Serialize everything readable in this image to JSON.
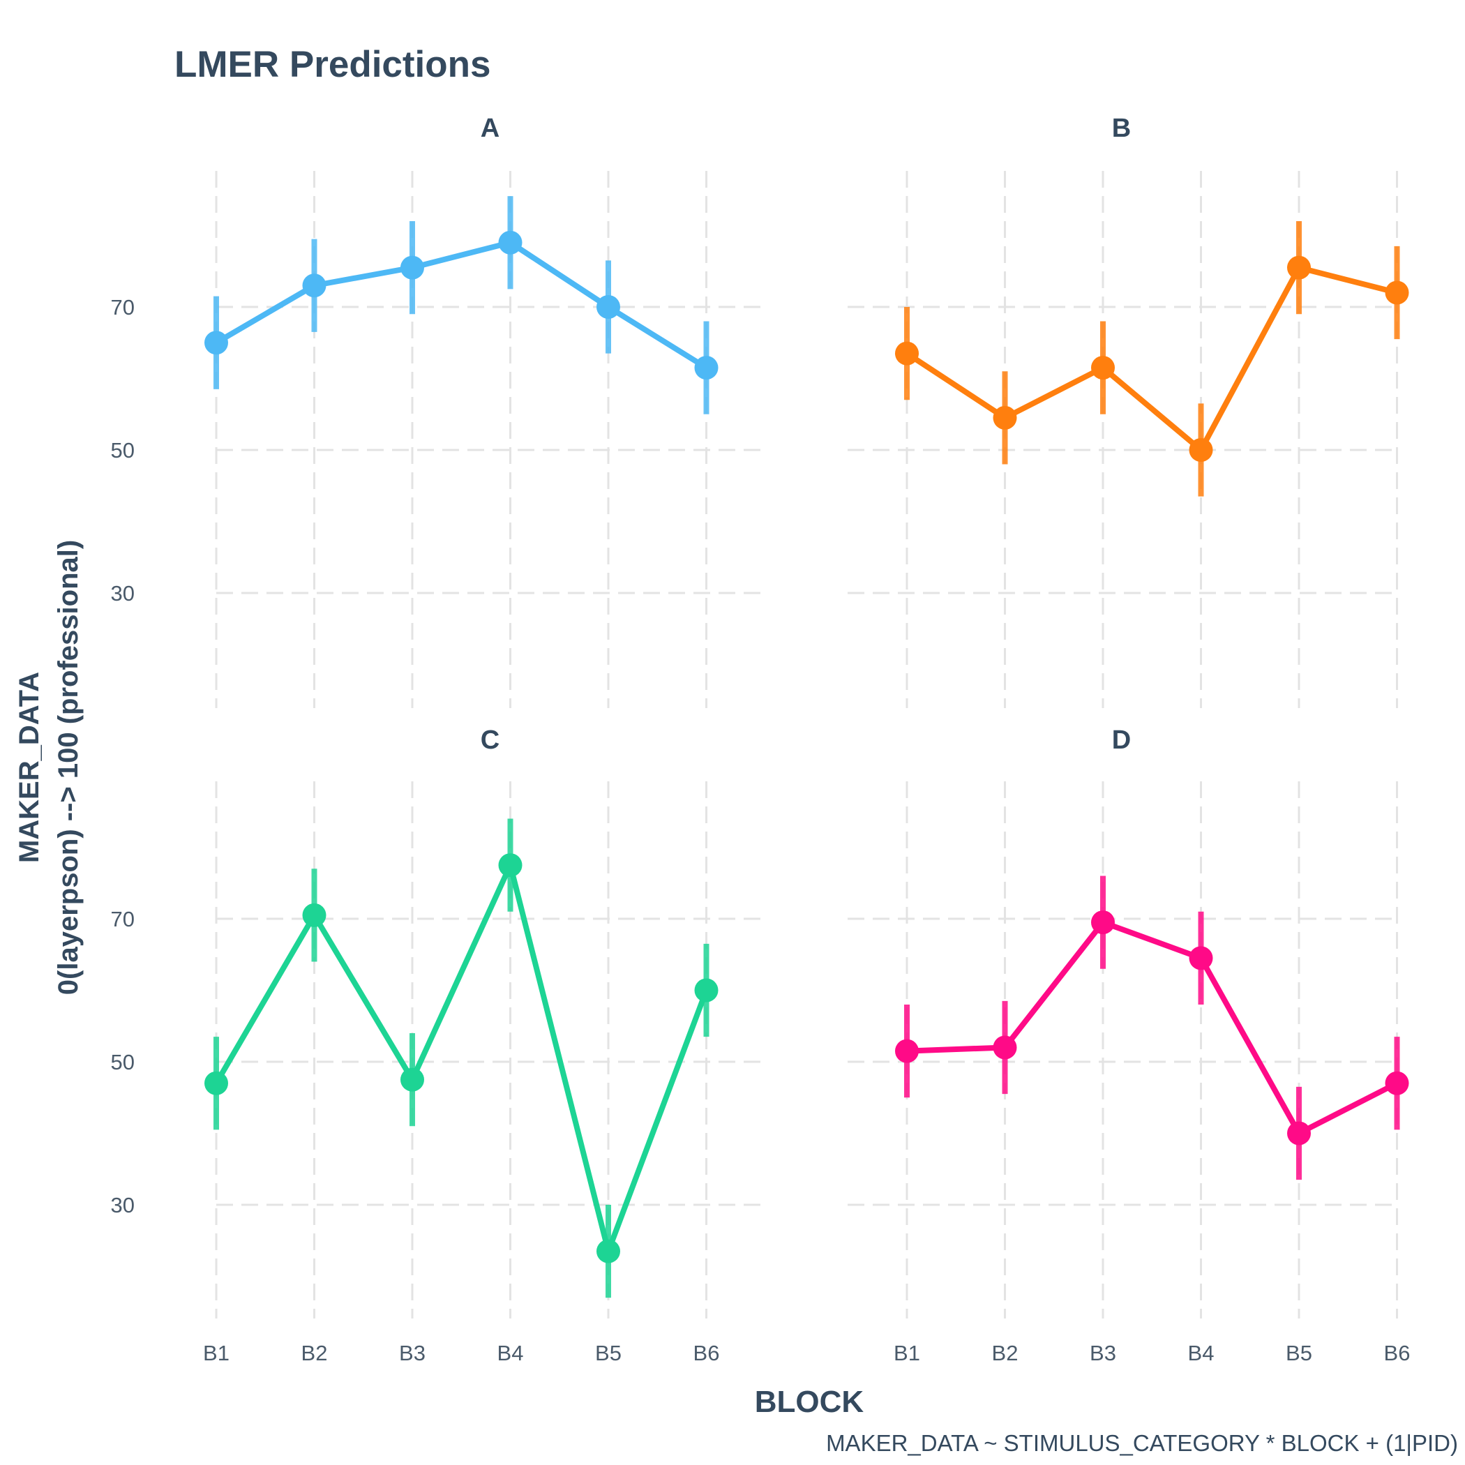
{
  "title": "LMER Predictions",
  "caption": "MAKER_DATA ~ STIMULUS_CATEGORY * BLOCK + (1|PID)",
  "chart_data": {
    "type": "line",
    "title": "LMER Predictions",
    "xlabel": "BLOCK",
    "ylabel_line1": "MAKER_DATA",
    "ylabel_line2": "0(layerpson) --> 100 (professional)",
    "categories": [
      "B1",
      "B2",
      "B3",
      "B4",
      "B5",
      "B6"
    ],
    "yticks": [
      30,
      50,
      70
    ],
    "ylim": [
      13,
      88
    ],
    "grid": true,
    "facets": [
      {
        "name": "A",
        "color": "#4db8f5",
        "values": [
          65,
          73,
          75.5,
          79,
          70,
          61.5
        ],
        "lower": [
          58.5,
          66.5,
          69,
          72.5,
          63.5,
          55
        ],
        "upper": [
          71.5,
          79.5,
          82,
          85.5,
          76.5,
          68
        ]
      },
      {
        "name": "B",
        "color": "#ff7f0e",
        "values": [
          63.5,
          54.5,
          61.5,
          50,
          75.5,
          72
        ],
        "lower": [
          57,
          48,
          55,
          43.5,
          69,
          65.5
        ],
        "upper": [
          70,
          61,
          68,
          56.5,
          82,
          78.5
        ]
      },
      {
        "name": "C",
        "color": "#1dd494",
        "values": [
          47,
          70.5,
          47.5,
          77.5,
          23.5,
          60
        ],
        "lower": [
          40.5,
          64,
          41,
          71,
          17,
          53.5
        ],
        "upper": [
          53.5,
          77,
          54,
          84,
          30,
          66.5
        ]
      },
      {
        "name": "D",
        "color": "#ff0a87",
        "values": [
          51.5,
          52,
          69.5,
          64.5,
          40,
          47
        ],
        "lower": [
          45,
          45.5,
          63,
          58,
          33.5,
          40.5
        ],
        "upper": [
          58,
          58.5,
          76,
          71,
          46.5,
          53.5
        ]
      }
    ]
  }
}
